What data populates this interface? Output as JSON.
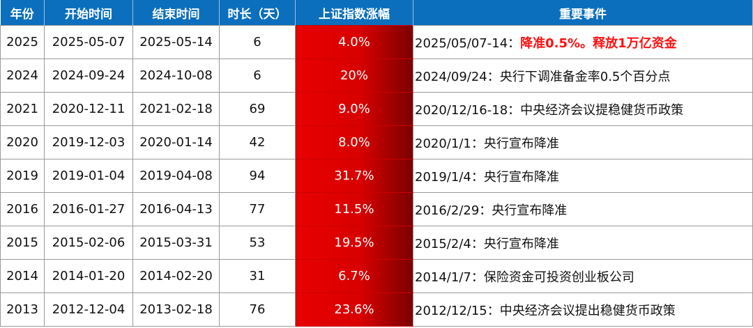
{
  "headers": [
    "年份",
    "开始时间",
    "结束时间",
    "时长（天）",
    "上证指数涨幅",
    "重要事件"
  ],
  "rows": [
    {
      "year": "2025",
      "start": "2025-05-07",
      "end": "2025-05-14",
      "days": "6",
      "gain": "4.0%",
      "event": "2025/05/07-14：",
      "event_highlight": "降准0.5%。释放1万亿资金"
    },
    {
      "year": "2024",
      "start": "2024-09-24",
      "end": "2024-10-08",
      "days": "6",
      "gain": "20%",
      "event": "2024/09/24：央行下调准备金率0.5个百分点"
    },
    {
      "year": "2021",
      "start": "2020-12-11",
      "end": "2021-02-18",
      "days": "69",
      "gain": "9.0%",
      "event": "2020/12/16-18：中央经济会议提稳健货币政策"
    },
    {
      "year": "2020",
      "start": "2019-12-03",
      "end": "2020-01-14",
      "days": "42",
      "gain": "8.0%",
      "event": "2020/1/1：央行宣布降准"
    },
    {
      "year": "2019",
      "start": "2019-01-04",
      "end": "2019-04-08",
      "days": "94",
      "gain": "31.7%",
      "event": "2019/1/4：央行宣布降准"
    },
    {
      "year": "2016",
      "start": "2016-01-27",
      "end": "2016-04-13",
      "days": "77",
      "gain": "11.5%",
      "event": "2016/2/29：央行宣布降准"
    },
    {
      "year": "2015",
      "start": "2015-02-06",
      "end": "2015-03-31",
      "days": "53",
      "gain": "19.5%",
      "event": "2015/2/4：央行宣布降准"
    },
    {
      "year": "2014",
      "start": "2014-01-20",
      "end": "2014-02-20",
      "days": "31",
      "gain": "6.7%",
      "event": "2014/1/7：保险资金可投资创业板公司"
    },
    {
      "year": "2013",
      "start": "2012-12-04",
      "end": "2013-02-18",
      "days": "76",
      "gain": "23.6%",
      "event": "2012/12/15：中央经济会议提出稳健货币政策"
    }
  ],
  "colors": {
    "header": "#0b6fbe",
    "gain_cell": "#e80000",
    "highlight": "#ff1010"
  }
}
